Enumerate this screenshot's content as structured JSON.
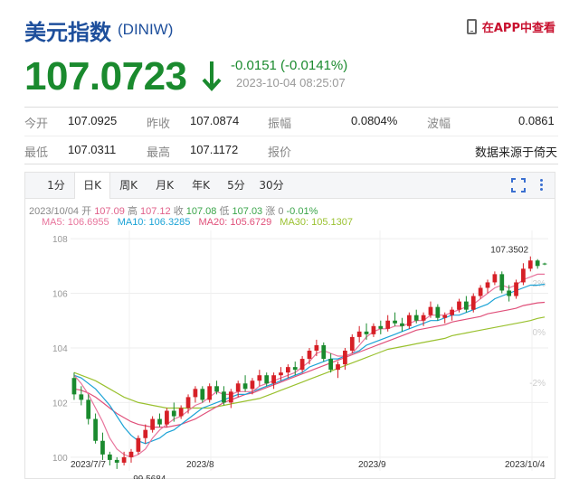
{
  "header": {
    "title": "美元指数",
    "code": "(DINIW)",
    "app_link": "在APP中查看"
  },
  "quote": {
    "price": "107.0723",
    "change": "-0.0151 (-0.0141%)",
    "time": "2023-10-04 08:25:07",
    "colors": {
      "down": "#1a8a2e"
    }
  },
  "stats": {
    "row1": [
      {
        "label": "今开",
        "value": "107.0925"
      },
      {
        "label": "昨收",
        "value": "107.0874"
      },
      {
        "label": "振幅",
        "value": "0.0804%"
      },
      {
        "label": "波幅",
        "value": "0.0861"
      }
    ],
    "row2": [
      {
        "label": "最低",
        "value": "107.0311"
      },
      {
        "label": "最高",
        "value": "107.1172"
      },
      {
        "label": "报价",
        "value": "数据来源于倚天"
      }
    ]
  },
  "chart_tabs": [
    "1分",
    "日K",
    "周K",
    "月K",
    "年K",
    "5分",
    "30分"
  ],
  "active_tab": "日K",
  "chart_info": {
    "date": "2023/10/04",
    "open_label": "开",
    "open": "107.09",
    "high_label": "高",
    "high": "107.12",
    "close_label": "收",
    "close": "107.08",
    "low_label": "低",
    "low": "107.03",
    "chg_label": "涨",
    "chg": "0",
    "pct": "-0.01%",
    "ma5": "MA5: 106.6955",
    "ma10": "MA10: 106.3285",
    "ma20": "MA20: 105.6729",
    "ma30": "MA30: 105.1307",
    "ma_colors": {
      "ma5": "#e8749c",
      "ma10": "#1ba3d6",
      "ma20": "#e0507a",
      "ma30": "#9ac12f"
    }
  },
  "chart_data": {
    "type": "candlestick",
    "y_ticks": [
      "108",
      "106",
      "104",
      "102",
      "100"
    ],
    "pct_ticks": [
      "2%",
      "0%",
      "-2%"
    ],
    "x_ticks": [
      "2023/7/7",
      "2023/8",
      "2023/9",
      "2023/10/4"
    ],
    "ylim": [
      99.5,
      108.3
    ],
    "max_label": "107.3502",
    "min_label": "99.5684",
    "candles": [
      [
        102.9,
        103.1,
        102.1,
        102.3
      ],
      [
        102.3,
        102.6,
        101.9,
        102.1
      ],
      [
        102.1,
        102.3,
        101.2,
        101.4
      ],
      [
        101.4,
        101.6,
        100.5,
        100.6
      ],
      [
        100.6,
        100.9,
        99.9,
        100.1
      ],
      [
        100.1,
        100.2,
        99.7,
        99.9
      ],
      [
        99.9,
        100.0,
        99.57,
        99.8
      ],
      [
        99.8,
        100.2,
        99.7,
        100.0
      ],
      [
        100.0,
        100.3,
        99.8,
        100.2
      ],
      [
        100.2,
        100.8,
        100.1,
        100.7
      ],
      [
        100.7,
        101.2,
        100.5,
        101.0
      ],
      [
        101.0,
        101.5,
        100.9,
        101.4
      ],
      [
        101.4,
        101.6,
        101.1,
        101.2
      ],
      [
        101.2,
        101.8,
        101.1,
        101.7
      ],
      [
        101.7,
        102.0,
        101.3,
        101.5
      ],
      [
        101.5,
        101.9,
        101.4,
        101.8
      ],
      [
        101.8,
        102.3,
        101.6,
        102.2
      ],
      [
        102.2,
        102.6,
        102.0,
        102.5
      ],
      [
        102.5,
        102.6,
        102.0,
        102.1
      ],
      [
        102.1,
        102.7,
        102.0,
        102.6
      ],
      [
        102.6,
        102.8,
        102.3,
        102.4
      ],
      [
        102.4,
        102.6,
        101.9,
        102.0
      ],
      [
        102.0,
        102.5,
        101.8,
        102.4
      ],
      [
        102.4,
        102.8,
        102.2,
        102.7
      ],
      [
        102.7,
        103.0,
        102.4,
        102.5
      ],
      [
        102.5,
        102.9,
        102.3,
        102.8
      ],
      [
        102.8,
        103.2,
        102.6,
        103.0
      ],
      [
        103.0,
        103.1,
        102.6,
        102.7
      ],
      [
        102.7,
        103.1,
        102.5,
        103.0
      ],
      [
        103.0,
        103.3,
        102.8,
        103.1
      ],
      [
        103.1,
        103.4,
        102.9,
        103.3
      ],
      [
        103.3,
        103.5,
        103.0,
        103.2
      ],
      [
        103.2,
        103.7,
        103.1,
        103.6
      ],
      [
        103.6,
        104.0,
        103.4,
        103.9
      ],
      [
        103.9,
        104.3,
        103.7,
        104.1
      ],
      [
        104.1,
        104.2,
        103.5,
        103.6
      ],
      [
        103.6,
        103.8,
        103.1,
        103.2
      ],
      [
        103.2,
        103.5,
        102.9,
        103.4
      ],
      [
        103.4,
        104.0,
        103.2,
        103.9
      ],
      [
        103.9,
        104.5,
        103.8,
        104.4
      ],
      [
        104.4,
        104.8,
        104.2,
        104.6
      ],
      [
        104.6,
        104.9,
        104.3,
        104.5
      ],
      [
        104.5,
        104.9,
        104.4,
        104.8
      ],
      [
        104.8,
        105.0,
        104.5,
        104.7
      ],
      [
        104.7,
        105.2,
        104.6,
        105.0
      ],
      [
        105.0,
        105.3,
        104.8,
        104.9
      ],
      [
        104.9,
        105.1,
        104.6,
        104.8
      ],
      [
        104.8,
        105.3,
        104.7,
        105.2
      ],
      [
        105.2,
        105.4,
        104.9,
        105.0
      ],
      [
        105.0,
        105.3,
        104.8,
        105.2
      ],
      [
        105.2,
        105.7,
        105.1,
        105.5
      ],
      [
        105.5,
        105.6,
        105.0,
        105.1
      ],
      [
        105.1,
        105.3,
        104.9,
        105.2
      ],
      [
        105.2,
        105.5,
        105.0,
        105.4
      ],
      [
        105.4,
        105.8,
        105.3,
        105.7
      ],
      [
        105.7,
        105.9,
        105.3,
        105.4
      ],
      [
        105.4,
        106.0,
        105.3,
        105.9
      ],
      [
        105.9,
        106.3,
        105.8,
        106.2
      ],
      [
        106.2,
        106.5,
        106.0,
        106.4
      ],
      [
        106.4,
        106.8,
        106.3,
        106.7
      ],
      [
        106.7,
        106.8,
        106.0,
        106.1
      ],
      [
        106.1,
        106.3,
        105.7,
        105.9
      ],
      [
        105.9,
        106.5,
        105.8,
        106.4
      ],
      [
        106.4,
        107.1,
        106.3,
        106.9
      ],
      [
        106.9,
        107.35,
        106.8,
        107.2
      ],
      [
        107.2,
        107.25,
        106.9,
        107.0
      ],
      [
        107.09,
        107.12,
        107.03,
        107.08
      ]
    ],
    "ma5": [
      103.0,
      102.7,
      102.3,
      101.8,
      101.3,
      100.7,
      100.3,
      100.1,
      100.0,
      100.1,
      100.3,
      100.7,
      101.0,
      101.2,
      101.4,
      101.5,
      101.7,
      101.9,
      102.0,
      102.2,
      102.4,
      102.3,
      102.3,
      102.4,
      102.4,
      102.4,
      102.6,
      102.7,
      102.8,
      102.9,
      103.0,
      103.1,
      103.3,
      103.5,
      103.8,
      103.9,
      103.8,
      103.7,
      103.7,
      103.8,
      104.1,
      104.4,
      104.6,
      104.7,
      104.7,
      104.8,
      104.8,
      104.9,
      105.0,
      105.0,
      105.2,
      105.2,
      105.2,
      105.3,
      105.4,
      105.5,
      105.6,
      105.8,
      106.0,
      106.2,
      106.3,
      106.2,
      106.3,
      106.5,
      106.6,
      106.7,
      106.7
    ],
    "ma10": [
      103.0,
      102.9,
      102.7,
      102.5,
      102.2,
      101.9,
      101.5,
      101.1,
      100.8,
      100.6,
      100.5,
      100.6,
      100.7,
      100.9,
      101.0,
      101.2,
      101.4,
      101.6,
      101.8,
      101.9,
      102.0,
      102.1,
      102.2,
      102.3,
      102.3,
      102.4,
      102.5,
      102.6,
      102.7,
      102.8,
      102.9,
      103.0,
      103.1,
      103.3,
      103.4,
      103.5,
      103.6,
      103.6,
      103.7,
      103.8,
      103.9,
      104.1,
      104.2,
      104.3,
      104.4,
      104.5,
      104.6,
      104.7,
      104.8,
      104.9,
      105.0,
      105.0,
      105.1,
      105.2,
      105.2,
      105.3,
      105.4,
      105.5,
      105.6,
      105.8,
      105.9,
      106.0,
      106.1,
      106.2,
      106.3,
      106.3,
      106.33
    ],
    "ma20": [
      102.5,
      102.45,
      102.35,
      102.2,
      102.0,
      101.8,
      101.6,
      101.45,
      101.3,
      101.2,
      101.15,
      101.1,
      101.1,
      101.1,
      101.15,
      101.2,
      101.3,
      101.4,
      101.55,
      101.7,
      101.85,
      102.0,
      102.1,
      102.2,
      102.3,
      102.35,
      102.45,
      102.55,
      102.65,
      102.75,
      102.85,
      102.95,
      103.05,
      103.15,
      103.25,
      103.35,
      103.45,
      103.55,
      103.65,
      103.75,
      103.85,
      103.95,
      104.05,
      104.15,
      104.25,
      104.35,
      104.45,
      104.55,
      104.65,
      104.7,
      104.75,
      104.8,
      104.85,
      104.95,
      105.0,
      105.05,
      105.1,
      105.15,
      105.25,
      105.3,
      105.35,
      105.4,
      105.45,
      105.55,
      105.6,
      105.65,
      105.67
    ],
    "ma30": [
      103.1,
      103.0,
      102.9,
      102.8,
      102.65,
      102.5,
      102.35,
      102.2,
      102.1,
      102.0,
      101.95,
      101.9,
      101.85,
      101.8,
      101.8,
      101.8,
      101.8,
      101.8,
      101.8,
      101.8,
      101.85,
      101.9,
      101.95,
      102.0,
      102.05,
      102.1,
      102.15,
      102.25,
      102.35,
      102.45,
      102.55,
      102.65,
      102.75,
      102.85,
      102.95,
      103.05,
      103.15,
      103.25,
      103.35,
      103.45,
      103.55,
      103.65,
      103.75,
      103.85,
      103.95,
      104.0,
      104.05,
      104.1,
      104.15,
      104.2,
      104.25,
      104.3,
      104.35,
      104.45,
      104.5,
      104.55,
      104.6,
      104.65,
      104.7,
      104.75,
      104.8,
      104.85,
      104.9,
      104.95,
      105.0,
      105.08,
      105.13
    ],
    "colors": {
      "up": "#d61f26",
      "down": "#1a8a2e"
    }
  }
}
